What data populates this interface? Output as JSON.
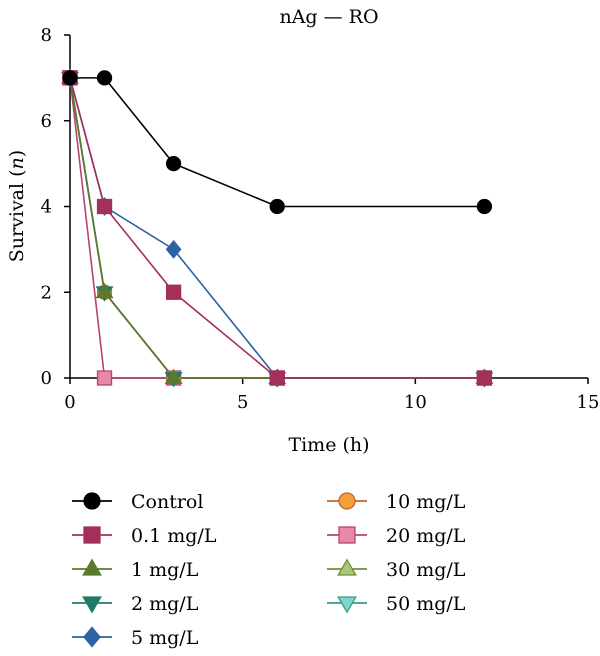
{
  "chart_data": {
    "type": "line",
    "title": "nAg — RO",
    "xlabel": "Time (h)",
    "ylabel_prefix": "Survival (",
    "ylabel_var": "n",
    "ylabel_suffix": ")",
    "xlim": [
      0,
      15
    ],
    "ylim": [
      0,
      8
    ],
    "xticks": [
      0,
      5,
      10,
      15
    ],
    "yticks": [
      0,
      2,
      4,
      6,
      8
    ],
    "grid": false,
    "legend_position": "bottom",
    "series": [
      {
        "name": "Control",
        "color": "#000000",
        "fill": "#000000",
        "marker": "circle",
        "points": [
          [
            0,
            7
          ],
          [
            1,
            7
          ],
          [
            3,
            5
          ],
          [
            6,
            4
          ],
          [
            12,
            4
          ]
        ]
      },
      {
        "name": "0.1 mg/L",
        "color": "#a2305a",
        "fill": "#a2305a",
        "marker": "square",
        "points": [
          [
            0,
            7
          ],
          [
            1,
            4
          ],
          [
            3,
            2
          ],
          [
            6,
            0
          ],
          [
            12,
            0
          ]
        ]
      },
      {
        "name": "1 mg/L",
        "color": "#5a7a2e",
        "fill": "#5a7a2e",
        "marker": "triangle-up",
        "points": [
          [
            0,
            7
          ],
          [
            1,
            2
          ],
          [
            3,
            0
          ],
          [
            6,
            0
          ],
          [
            12,
            0
          ]
        ]
      },
      {
        "name": "2 mg/L",
        "color": "#1f7a6a",
        "fill": "#1f7a6a",
        "marker": "triangle-down",
        "points": [
          [
            0,
            7
          ],
          [
            1,
            2
          ],
          [
            3,
            0
          ],
          [
            6,
            0
          ],
          [
            12,
            0
          ]
        ]
      },
      {
        "name": "5 mg/L",
        "color": "#2f62a3",
        "fill": "#2f62a3",
        "marker": "diamond",
        "points": [
          [
            0,
            7
          ],
          [
            1,
            4
          ],
          [
            3,
            3
          ],
          [
            6,
            0
          ],
          [
            12,
            0
          ]
        ]
      },
      {
        "name": "10 mg/L",
        "color": "#c8642a",
        "fill": "#f2a03a",
        "marker": "circle",
        "points": [
          [
            0,
            7
          ],
          [
            1,
            2
          ],
          [
            3,
            0
          ],
          [
            6,
            0
          ],
          [
            12,
            0
          ]
        ]
      },
      {
        "name": "20 mg/L",
        "color": "#b9436e",
        "fill": "#e788a8",
        "marker": "square",
        "points": [
          [
            0,
            7
          ],
          [
            1,
            0
          ],
          [
            3,
            0
          ],
          [
            6,
            0
          ],
          [
            12,
            0
          ]
        ]
      },
      {
        "name": "30 mg/L",
        "color": "#6f8f3a",
        "fill": "#a8c77a",
        "marker": "triangle-up",
        "points": [
          [
            0,
            7
          ],
          [
            1,
            2
          ],
          [
            3,
            0
          ],
          [
            6,
            0
          ],
          [
            12,
            0
          ]
        ]
      },
      {
        "name": "50 mg/L",
        "color": "#3a9a8a",
        "fill": "#7fd6c6",
        "marker": "triangle-down",
        "points": [
          [
            0,
            7
          ],
          [
            1,
            2
          ],
          [
            3,
            0
          ],
          [
            6,
            0
          ],
          [
            12,
            0
          ]
        ]
      }
    ]
  }
}
